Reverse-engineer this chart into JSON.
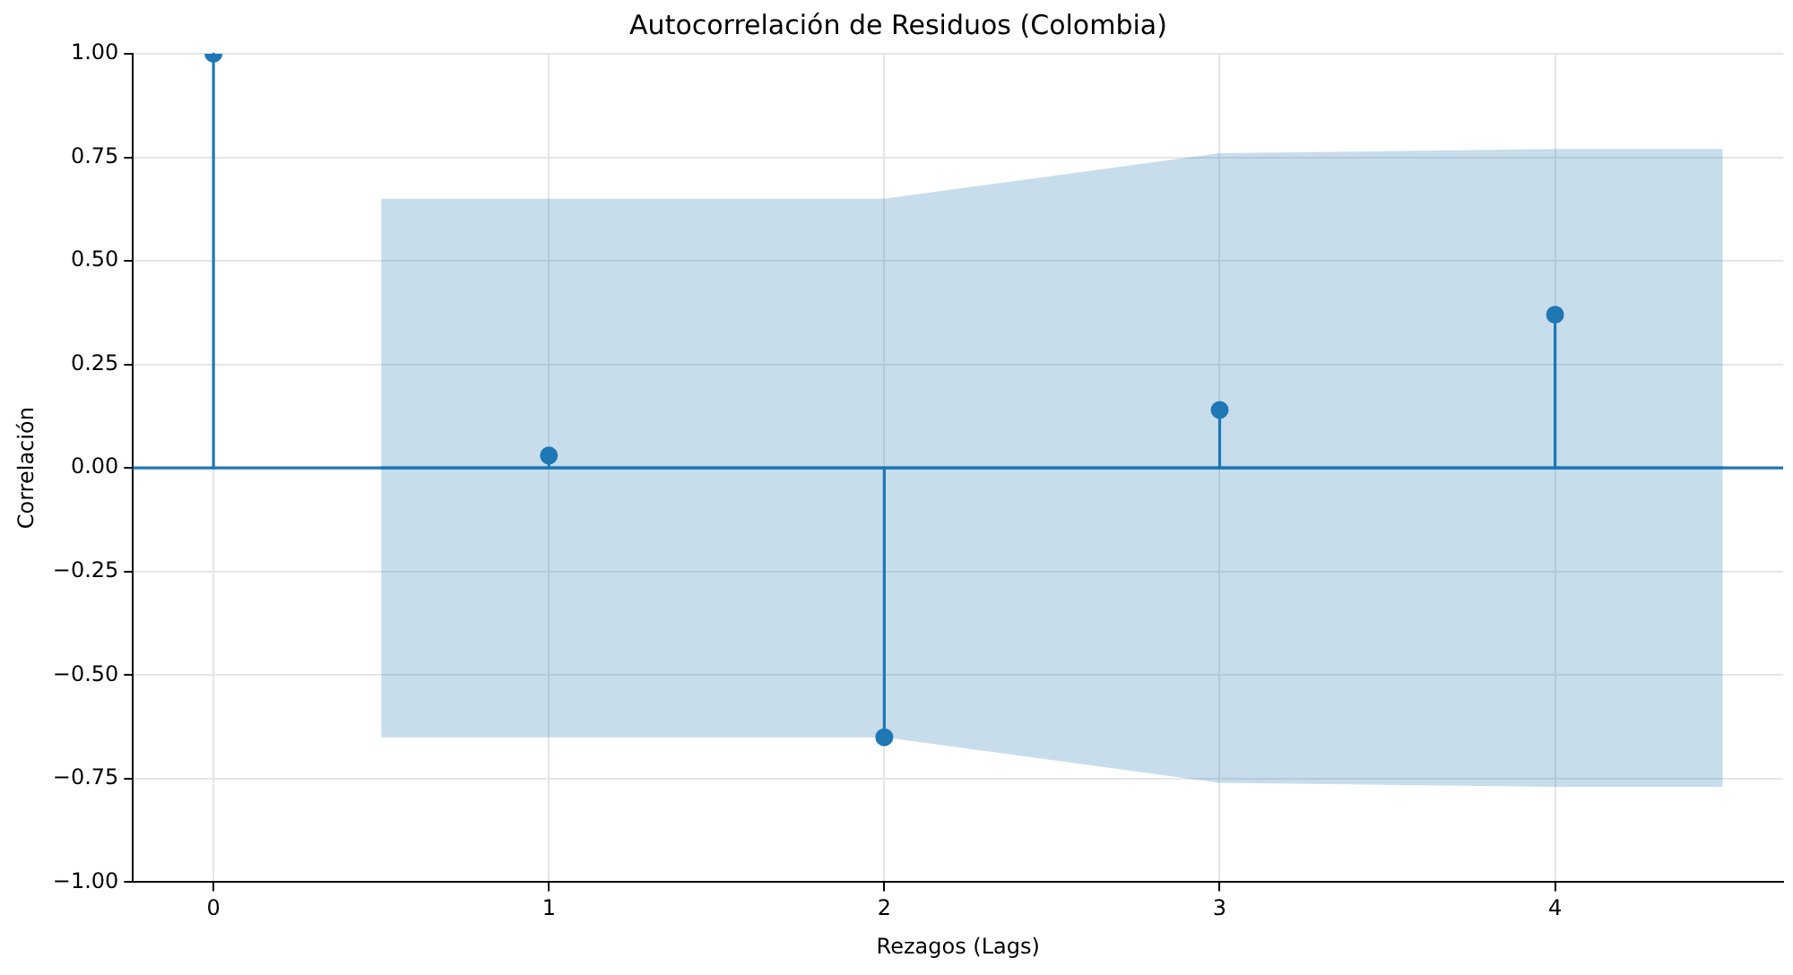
{
  "chart_data": {
    "type": "lollipop",
    "title": "Autocorrelación de Residuos (Colombia)",
    "xlabel": "Rezagos (Lags)",
    "ylabel": "Correlación",
    "xlim": [
      -0.24,
      4.68
    ],
    "xticks": [
      0,
      1,
      2,
      3,
      4
    ],
    "ylim": [
      -1,
      1
    ],
    "yticks": [
      {
        "value": -1,
        "label": "−1.00"
      },
      {
        "value": -0.75,
        "label": "−0.75"
      },
      {
        "value": -0.5,
        "label": "−0.50"
      },
      {
        "value": -0.25,
        "label": "−0.25"
      },
      {
        "value": 0,
        "label": "0.00"
      },
      {
        "value": 0.25,
        "label": "0.25"
      },
      {
        "value": 0.5,
        "label": "0.50"
      },
      {
        "value": 0.75,
        "label": "0.75"
      },
      {
        "value": 1,
        "label": "1.00"
      }
    ],
    "grid": true,
    "legend": false,
    "marker": "circle",
    "series": [
      {
        "type": "line",
        "color": "#1f77b4",
        "marker": "none",
        "x": [
          0.5,
          1,
          2,
          3,
          4,
          4.5
        ],
        "values": [
          0,
          0,
          0,
          0,
          0,
          0
        ],
        "lower": [
          -0.65,
          -0.65,
          -0.65,
          -0.76,
          -0.77,
          -0.77
        ],
        "upper": [
          0.65,
          0.65,
          0.65,
          0.76,
          0.77,
          0.77
        ]
      },
      {
        "type": "lollipop",
        "color": "#1f77b4",
        "x": [
          0,
          1,
          2,
          3,
          4
        ],
        "values": [
          1,
          0.03,
          -0.65,
          0.14,
          0.37
        ]
      }
    ],
    "ref_lines": [
      {
        "axis": "y",
        "value": 0,
        "color": "#1f77b4",
        "line_style": "solid"
      }
    ]
  }
}
